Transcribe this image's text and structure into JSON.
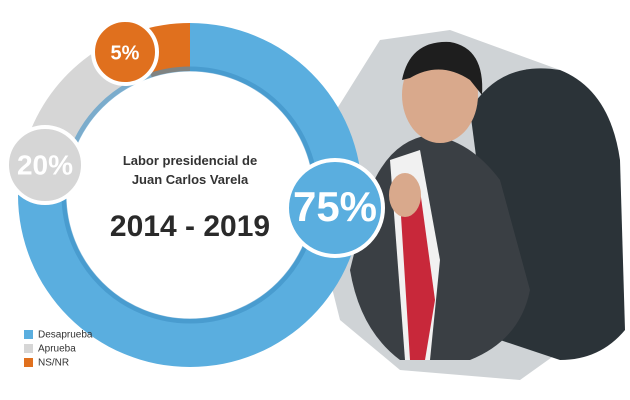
{
  "chart_data": {
    "type": "donut",
    "title": "Labor presidencial de Juan Carlos Varela",
    "subtitle": "2014 - 2019",
    "categories": [
      "Desaprueba",
      "Aprueba",
      "NS/NR"
    ],
    "values": [
      75,
      20,
      5
    ],
    "value_labels": [
      "75%",
      "20%",
      "5%"
    ],
    "colors": [
      "#5aaedf",
      "#d6d6d6",
      "#e0701e"
    ]
  }
}
